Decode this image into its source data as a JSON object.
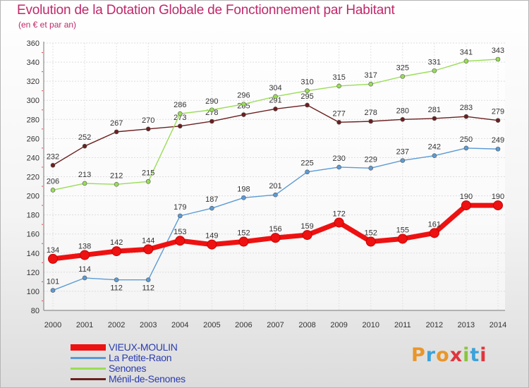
{
  "header": {
    "title": "Evolution de la Dotation Globale de Fonctionnement par Habitant",
    "subtitle": "(en € et par an)"
  },
  "logo": {
    "text": "Proxiti"
  },
  "chart_data": {
    "type": "line",
    "title": "Evolution de la Dotation Globale de Fonctionnement par Habitant",
    "subtitle": "(en € et par an)",
    "xlabel": "",
    "ylabel": "",
    "ylim": [
      80,
      360
    ],
    "yticks": [
      80,
      100,
      120,
      140,
      160,
      180,
      200,
      220,
      240,
      260,
      280,
      300,
      320,
      340,
      360
    ],
    "grid": true,
    "legend_position": "bottom-left",
    "categories": [
      "2000",
      "2001",
      "2002",
      "2003",
      "2004",
      "2005",
      "2006",
      "2007",
      "2008",
      "2009",
      "2010",
      "2011",
      "2012",
      "2013",
      "2014"
    ],
    "series": [
      {
        "name": "VIEUX-MOULIN",
        "color": "#ee1111",
        "values": [
          134,
          138,
          142,
          144,
          153,
          149,
          152,
          156,
          159,
          172,
          152,
          155,
          161,
          190,
          190
        ]
      },
      {
        "name": "La Petite-Raon",
        "color": "#5b9bd5",
        "values": [
          101,
          114,
          112,
          112,
          179,
          187,
          198,
          201,
          225,
          230,
          229,
          237,
          242,
          250,
          249
        ]
      },
      {
        "name": "Senones",
        "color": "#99dd55",
        "values": [
          206,
          213,
          212,
          215,
          286,
          290,
          296,
          304,
          310,
          315,
          317,
          325,
          331,
          341,
          343
        ]
      },
      {
        "name": "Ménil-de-Senones",
        "color": "#6b1f1f",
        "values": [
          232,
          252,
          267,
          270,
          273,
          278,
          285,
          291,
          295,
          277,
          278,
          280,
          281,
          283,
          279
        ]
      }
    ]
  }
}
